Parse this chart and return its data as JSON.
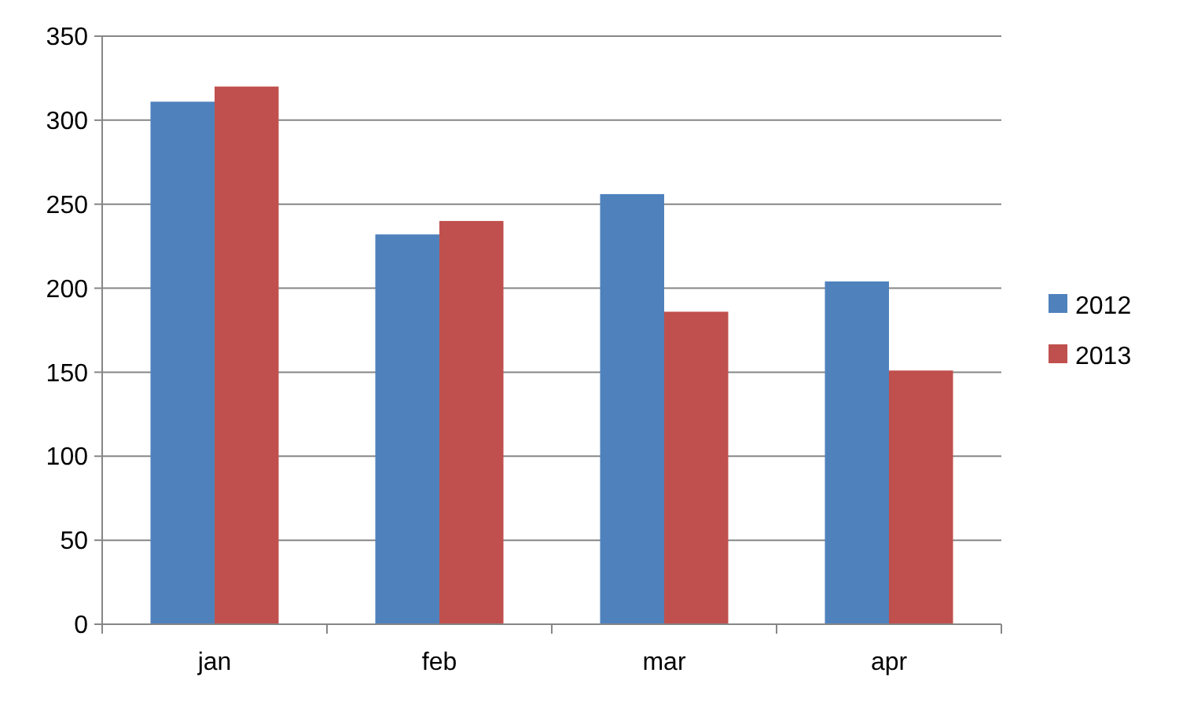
{
  "chart_data": {
    "type": "bar",
    "categories": [
      "jan",
      "feb",
      "mar",
      "apr"
    ],
    "series": [
      {
        "name": "2012",
        "color": "#4f81bd",
        "values": [
          311,
          232,
          256,
          204
        ]
      },
      {
        "name": "2013",
        "color": "#c0504d",
        "values": [
          320,
          240,
          186,
          151
        ]
      }
    ],
    "ylim": [
      0,
      350
    ],
    "yticks": [
      0,
      50,
      100,
      150,
      200,
      250,
      300,
      350
    ],
    "grid": "y",
    "legend": "right"
  }
}
